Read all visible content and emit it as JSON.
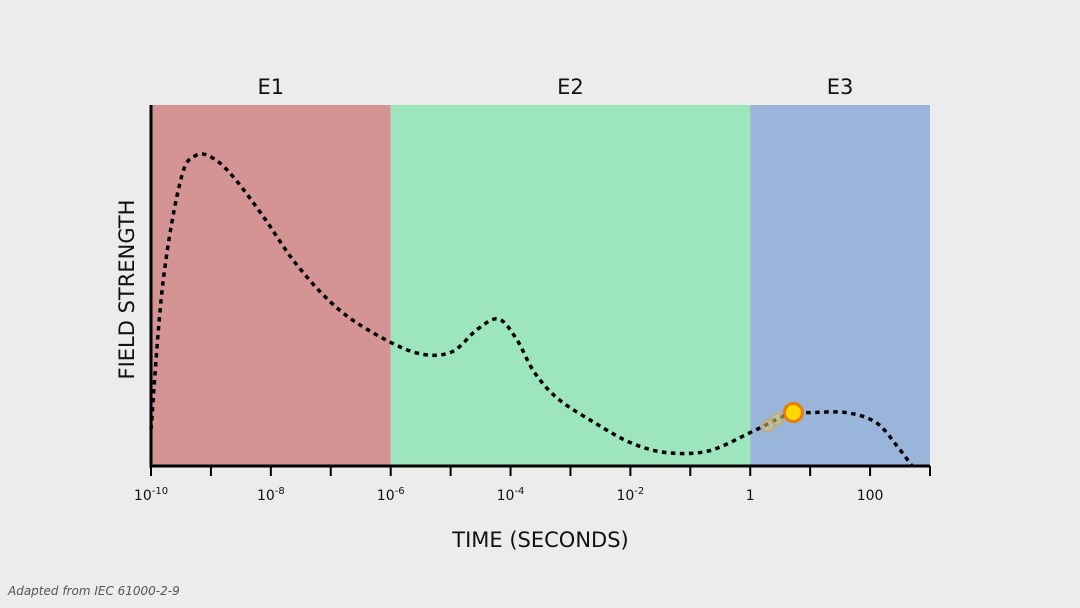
{
  "chart_data": {
    "type": "line",
    "title": "",
    "xlabel": "TIME (SECONDS)",
    "ylabel": "FIELD STRENGTH",
    "x_scale": "log",
    "xlim_exponent": [
      -10,
      3
    ],
    "ylim": [
      0,
      1
    ],
    "grid": false,
    "regions": [
      {
        "label": "E1",
        "x_start_exponent": -10,
        "x_end_exponent": -6,
        "color": "#d49494"
      },
      {
        "label": "E2",
        "x_start_exponent": -6,
        "x_end_exponent": 0,
        "color": "#9ce5bd"
      },
      {
        "label": "E3",
        "x_start_exponent": 0,
        "x_end_exponent": 3,
        "color": "#9ab5da"
      }
    ],
    "x_ticks": [
      {
        "exponent": -10,
        "base": "10",
        "sup": "-10"
      },
      {
        "exponent": -9,
        "base": "",
        "sup": ""
      },
      {
        "exponent": -8,
        "base": "10",
        "sup": "-8"
      },
      {
        "exponent": -7,
        "base": "",
        "sup": ""
      },
      {
        "exponent": -6,
        "base": "10",
        "sup": "-6"
      },
      {
        "exponent": -5,
        "base": "",
        "sup": ""
      },
      {
        "exponent": -4,
        "base": "10",
        "sup": "-4"
      },
      {
        "exponent": -3,
        "base": "",
        "sup": ""
      },
      {
        "exponent": -2,
        "base": "10",
        "sup": "-2"
      },
      {
        "exponent": -1,
        "base": "",
        "sup": ""
      },
      {
        "exponent": 0,
        "base": "1",
        "sup": ""
      },
      {
        "exponent": 1,
        "base": "",
        "sup": ""
      },
      {
        "exponent": 2,
        "base": "100",
        "sup": ""
      },
      {
        "exponent": 3,
        "base": "",
        "sup": ""
      }
    ],
    "series": [
      {
        "line_style": "dotted",
        "points": [
          {
            "x_exp": -10.0,
            "y": 0.11
          },
          {
            "x_exp": -9.8,
            "y": 0.55
          },
          {
            "x_exp": -9.5,
            "y": 0.86
          },
          {
            "x_exp": -9.25,
            "y": 0.93
          },
          {
            "x_exp": -8.95,
            "y": 0.92
          },
          {
            "x_exp": -8.6,
            "y": 0.86
          },
          {
            "x_exp": -8.1,
            "y": 0.74
          },
          {
            "x_exp": -7.6,
            "y": 0.61
          },
          {
            "x_exp": -7.0,
            "y": 0.49
          },
          {
            "x_exp": -6.4,
            "y": 0.41
          },
          {
            "x_exp": -5.6,
            "y": 0.34
          },
          {
            "x_exp": -5.0,
            "y": 0.34
          },
          {
            "x_exp": -4.55,
            "y": 0.41
          },
          {
            "x_exp": -4.2,
            "y": 0.44
          },
          {
            "x_exp": -3.9,
            "y": 0.38
          },
          {
            "x_exp": -3.6,
            "y": 0.28
          },
          {
            "x_exp": -3.2,
            "y": 0.2
          },
          {
            "x_exp": -2.6,
            "y": 0.13
          },
          {
            "x_exp": -2.0,
            "y": 0.07
          },
          {
            "x_exp": -1.4,
            "y": 0.04
          },
          {
            "x_exp": -0.7,
            "y": 0.045
          },
          {
            "x_exp": 0.0,
            "y": 0.1
          },
          {
            "x_exp": 0.45,
            "y": 0.14
          },
          {
            "x_exp": 0.72,
            "y": 0.16
          },
          {
            "x_exp": 1.0,
            "y": 0.16
          },
          {
            "x_exp": 1.6,
            "y": 0.16
          },
          {
            "x_exp": 2.1,
            "y": 0.13
          },
          {
            "x_exp": 2.45,
            "y": 0.06
          },
          {
            "x_exp": 2.7,
            "y": 0.0
          }
        ]
      }
    ],
    "marker": {
      "x_exp": 0.72,
      "y": 0.16,
      "color": "#ffd800",
      "stroke": "#e67e00"
    },
    "marker_trail": [
      {
        "x_exp": 0.45,
        "y": 0.14
      },
      {
        "x_exp": 0.3,
        "y": 0.12
      }
    ],
    "source_note": "Adapted from IEC 61000-2-9"
  }
}
